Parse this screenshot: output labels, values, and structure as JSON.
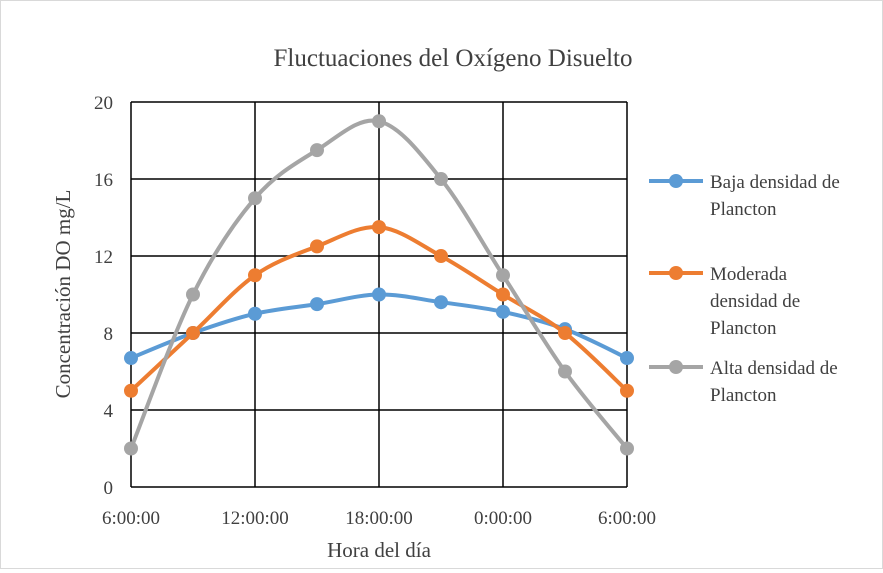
{
  "chart_data": {
    "type": "line",
    "title": "Fluctuaciones del Oxígeno Disuelto",
    "xlabel": "Hora del día",
    "ylabel": "Concentración DO mg/L",
    "x_tick_labels": [
      "6:00:00",
      "12:00:00",
      "18:00:00",
      "0:00:00",
      "6:00:00"
    ],
    "x_hours_elapsed": [
      0,
      3,
      6,
      9,
      12,
      15,
      18,
      21,
      24
    ],
    "y_ticks": [
      0,
      4,
      8,
      12,
      16,
      20
    ],
    "ylim": [
      0,
      20
    ],
    "grid": true,
    "legend_position": "right",
    "smooth": true,
    "series": [
      {
        "name_lines": [
          "Baja densidad de",
          "Plancton"
        ],
        "color": "#5b9bd5",
        "values": [
          6.7,
          8.0,
          9.0,
          9.5,
          10.0,
          9.6,
          9.1,
          8.2,
          6.7
        ]
      },
      {
        "name_lines": [
          "Moderada",
          "densidad de",
          "Plancton"
        ],
        "color": "#ed7d31",
        "values": [
          5.0,
          8.0,
          11.0,
          12.5,
          13.5,
          12.0,
          10.0,
          8.0,
          5.0
        ]
      },
      {
        "name_lines": [
          "Alta densidad de",
          "Plancton"
        ],
        "color": "#a5a5a5",
        "values": [
          2.0,
          10.0,
          15.0,
          17.5,
          19.0,
          16.0,
          11.0,
          6.0,
          2.0
        ]
      }
    ]
  }
}
